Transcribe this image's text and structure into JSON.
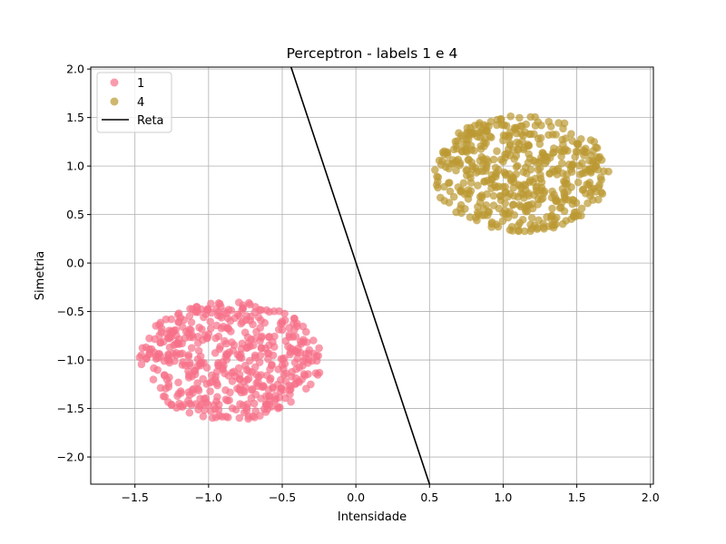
{
  "chart_data": {
    "type": "scatter",
    "title": "Perceptron - labels 1 e 4",
    "xlabel": "Intensidade",
    "ylabel": "Simetria",
    "xlim": [
      -1.8,
      2.02
    ],
    "ylim": [
      -2.28,
      2.02
    ],
    "xticks": [
      -1.5,
      -1.0,
      -0.5,
      0.0,
      0.5,
      1.0,
      1.5,
      2.0
    ],
    "yticks": [
      -2.0,
      -1.5,
      -1.0,
      -0.5,
      0.0,
      0.5,
      1.0,
      1.5,
      2.0
    ],
    "xtick_labels": [
      "−1.5",
      "−1.0",
      "−0.5",
      "0.0",
      "0.5",
      "1.0",
      "1.5",
      "2.0"
    ],
    "ytick_labels": [
      "−2.0",
      "−1.5",
      "−1.0",
      "−0.5",
      "0.0",
      "0.5",
      "1.0",
      "1.5",
      "2.0"
    ],
    "grid": true,
    "legend_position": "top-left",
    "series": [
      {
        "name": "1",
        "color": "#f77189",
        "distribution": "disk",
        "center": [
          -0.85,
          -1.0
        ],
        "radius": 0.62,
        "count": 500
      },
      {
        "name": "4",
        "color": "#bb9832",
        "distribution": "disk",
        "center": [
          1.12,
          0.92
        ],
        "radius": 0.6,
        "count": 500
      }
    ],
    "line": {
      "name": "Reta",
      "color": "#000000",
      "x": [
        -0.44,
        0.5
      ],
      "y": [
        2.02,
        -2.28
      ]
    }
  }
}
